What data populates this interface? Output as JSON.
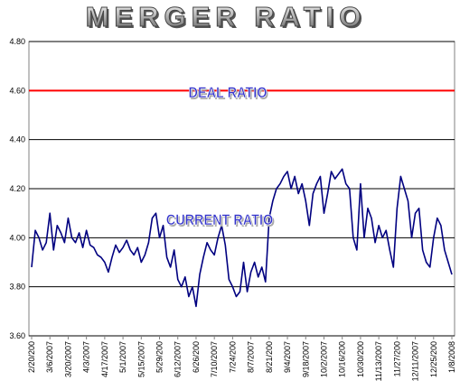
{
  "chart_data": {
    "type": "line",
    "title": "MERGER RATIO",
    "categories": [
      "2/20/200",
      null,
      null,
      null,
      null,
      "3/6/2007",
      null,
      null,
      null,
      null,
      "3/20/2007",
      null,
      null,
      null,
      null,
      "4/3/2007",
      null,
      null,
      null,
      null,
      "4/17/2007",
      null,
      null,
      null,
      null,
      "5/1/2007",
      null,
      null,
      null,
      null,
      "5/15/2007",
      null,
      null,
      null,
      null,
      "5/29/200",
      null,
      null,
      null,
      null,
      "6/12/2007",
      null,
      null,
      null,
      null,
      "6/26/200",
      null,
      null,
      null,
      null,
      "7/10/2007",
      null,
      null,
      null,
      null,
      "7/24/200",
      null,
      null,
      null,
      null,
      "8/7/2007",
      null,
      null,
      null,
      null,
      "8/21/200",
      null,
      null,
      null,
      null,
      "9/4/2007",
      null,
      null,
      null,
      null,
      "9/18/2007",
      null,
      null,
      null,
      null,
      "10/2/2007",
      null,
      null,
      null,
      null,
      "10/16/200",
      null,
      null,
      null,
      null,
      "10/30/200",
      null,
      null,
      null,
      null,
      "11/13/2007",
      null,
      null,
      null,
      null,
      "11/27/200",
      null,
      null,
      null,
      null,
      "12/11/2007",
      null,
      null,
      null,
      null,
      "12/25/200",
      null,
      null,
      null,
      null,
      "1/8/2008"
    ],
    "series": [
      {
        "name": "CURRENT RATIO",
        "color": "#000080",
        "values": [
          3.88,
          4.03,
          4.0,
          3.95,
          3.98,
          4.1,
          3.95,
          4.05,
          4.02,
          3.98,
          4.08,
          4.0,
          3.98,
          4.02,
          3.96,
          4.03,
          3.97,
          3.96,
          3.93,
          3.92,
          3.9,
          3.86,
          3.92,
          3.97,
          3.94,
          3.96,
          3.99,
          3.95,
          3.93,
          3.96,
          3.9,
          3.93,
          3.98,
          4.08,
          4.1,
          4.0,
          4.05,
          3.92,
          3.88,
          3.95,
          3.83,
          3.8,
          3.84,
          3.76,
          3.8,
          3.72,
          3.85,
          3.92,
          3.98,
          3.95,
          3.93,
          4.0,
          4.05,
          3.97,
          3.83,
          3.8,
          3.76,
          3.78,
          3.9,
          3.78,
          3.86,
          3.9,
          3.84,
          3.88,
          3.82,
          4.08,
          4.15,
          4.2,
          4.22,
          4.25,
          4.27,
          4.2,
          4.25,
          4.18,
          4.22,
          4.15,
          4.05,
          4.18,
          4.22,
          4.25,
          4.1,
          4.18,
          4.27,
          4.24,
          4.26,
          4.28,
          4.22,
          4.2,
          4.0,
          3.95,
          4.22,
          4.0,
          4.12,
          4.08,
          3.98,
          4.05,
          4.0,
          4.03,
          3.95,
          3.88,
          4.12,
          4.25,
          4.2,
          4.15,
          4.0,
          4.1,
          4.12,
          3.95,
          3.9,
          3.88,
          4.0,
          4.08,
          4.05,
          3.95,
          3.9,
          3.85
        ]
      }
    ],
    "reference_line": {
      "value": 4.6,
      "label": "DEAL RATIO",
      "color": "#ff0000"
    },
    "ylim": [
      3.6,
      4.8
    ],
    "yticks": [
      {
        "value": 3.6,
        "label": "3.60"
      },
      {
        "value": 3.8,
        "label": "3.80"
      },
      {
        "value": 4.0,
        "label": "4.00"
      },
      {
        "value": 4.2,
        "label": "4.20"
      },
      {
        "value": 4.4,
        "label": "4.40"
      },
      {
        "value": 4.6,
        "label": "4.60"
      },
      {
        "value": 4.8,
        "label": "4.80"
      }
    ],
    "grid": true
  }
}
